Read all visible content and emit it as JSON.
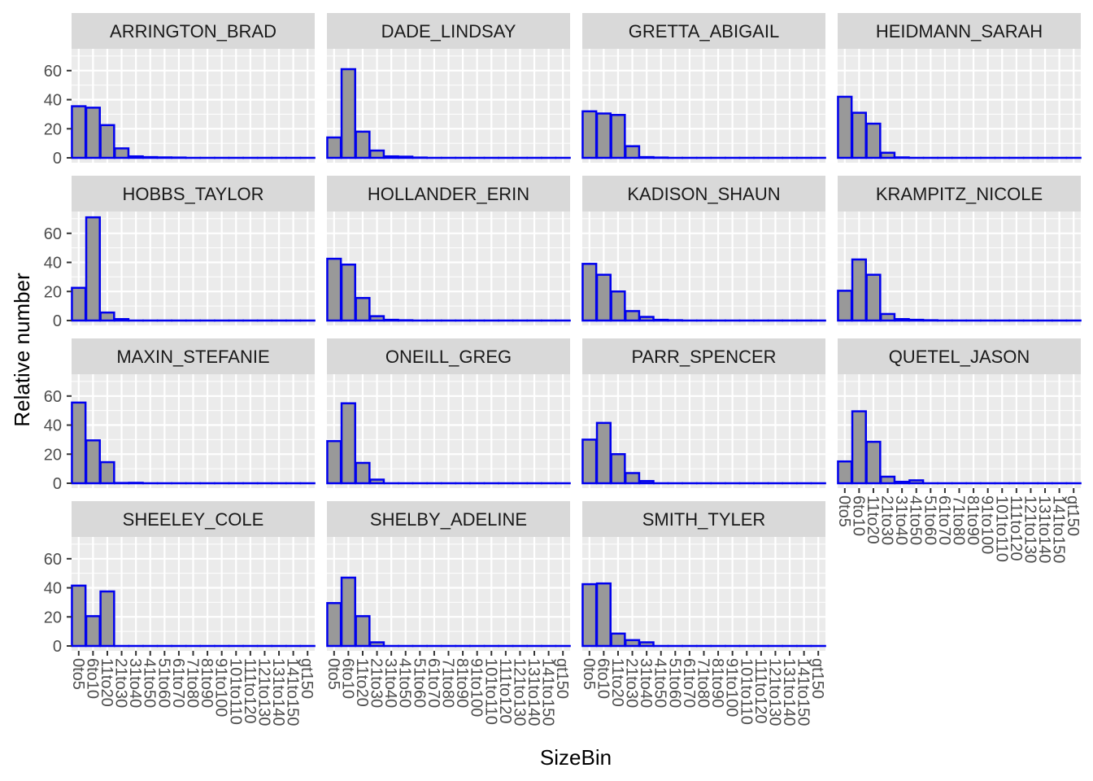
{
  "chart_data": {
    "type": "bar",
    "xlabel": "SizeBin",
    "ylabel": "Relative number",
    "ylim": [
      0,
      75
    ],
    "yticks": [
      0,
      20,
      40,
      60
    ],
    "grid": true,
    "categories": [
      "0to5",
      "6to10",
      "11to20",
      "21to30",
      "31to40",
      "41to50",
      "51to60",
      "61to70",
      "71to80",
      "81to90",
      "91to100",
      "101to110",
      "111to120",
      "121to130",
      "131to140",
      "141to150",
      "gt150"
    ],
    "colors": {
      "bar_fill": "#999999",
      "bar_outline": "#0000ee",
      "panel_bg": "#ebebeb",
      "strip_bg": "#d9d9d9",
      "grid": "#ffffff"
    },
    "panels": [
      {
        "name": "ARRINGTON_BRAD",
        "values": [
          35.5,
          34.5,
          22.5,
          6.5,
          1,
          0.5,
          0.3,
          0.2,
          0,
          0,
          0,
          0,
          0,
          0,
          0,
          0,
          0
        ]
      },
      {
        "name": "DADE_LINDSAY",
        "values": [
          14,
          61,
          18,
          5,
          1,
          0.8,
          0.2,
          0,
          0,
          0,
          0,
          0,
          0,
          0,
          0,
          0,
          0
        ]
      },
      {
        "name": "GRETTA_ABIGAIL",
        "values": [
          32,
          30.5,
          29.5,
          8,
          0.5,
          0.2,
          0,
          0,
          0,
          0,
          0,
          0,
          0,
          0,
          0,
          0,
          0
        ]
      },
      {
        "name": "HEIDMANN_SARAH",
        "values": [
          42,
          31,
          23.5,
          3.5,
          0.3,
          0,
          0,
          0,
          0,
          0,
          0,
          0,
          0,
          0,
          0,
          0,
          0
        ]
      },
      {
        "name": "HOBBS_TAYLOR",
        "values": [
          22.5,
          71,
          5.5,
          1,
          0,
          0,
          0,
          0,
          0,
          0,
          0,
          0,
          0,
          0,
          0,
          0,
          0
        ]
      },
      {
        "name": "HOLLANDER_ERIN",
        "values": [
          42.5,
          38.5,
          15.5,
          3,
          0.5,
          0.2,
          0,
          0,
          0,
          0,
          0,
          0,
          0,
          0,
          0,
          0,
          0
        ]
      },
      {
        "name": "KADISON_SHAUN",
        "values": [
          39,
          31.5,
          20,
          6.5,
          2.5,
          0.5,
          0.2,
          0,
          0,
          0,
          0,
          0,
          0,
          0,
          0,
          0,
          0
        ]
      },
      {
        "name": "KRAMPITZ_NICOLE",
        "values": [
          20.5,
          42,
          31.5,
          4.5,
          1,
          0.5,
          0.2,
          0,
          0,
          0,
          0,
          0,
          0,
          0,
          0,
          0,
          0
        ]
      },
      {
        "name": "MAXIN_STEFANIE",
        "values": [
          55.5,
          29.5,
          14.5,
          0.2,
          0.3,
          0,
          0,
          0,
          0,
          0,
          0,
          0,
          0,
          0,
          0,
          0,
          0
        ]
      },
      {
        "name": "ONEILL_GREG",
        "values": [
          29,
          55,
          14,
          2.5,
          0,
          0,
          0,
          0,
          0,
          0,
          0,
          0,
          0,
          0,
          0,
          0,
          0
        ]
      },
      {
        "name": "PARR_SPENCER",
        "values": [
          30,
          41.5,
          20,
          7,
          1.5,
          0,
          0,
          0,
          0,
          0,
          0,
          0,
          0,
          0,
          0,
          0,
          0
        ]
      },
      {
        "name": "QUETEL_JASON",
        "values": [
          15,
          49.5,
          28.5,
          4.5,
          1,
          2,
          0,
          0,
          0,
          0,
          0,
          0,
          0,
          0,
          0,
          0,
          0
        ]
      },
      {
        "name": "SHEELEY_COLE",
        "values": [
          41.5,
          20.5,
          37.5,
          0,
          0,
          0,
          0,
          0,
          0,
          0,
          0,
          0,
          0,
          0,
          0,
          0,
          0
        ]
      },
      {
        "name": "SHELBY_ADELINE",
        "values": [
          29.5,
          47,
          20.5,
          2.5,
          0,
          0,
          0,
          0,
          0,
          0,
          0,
          0,
          0,
          0,
          0,
          0,
          0
        ]
      },
      {
        "name": "SMITH_TYLER",
        "values": [
          42.5,
          43,
          8.5,
          4,
          2.5,
          0,
          0,
          0,
          0,
          0,
          0,
          0,
          0,
          0,
          0,
          0,
          0
        ]
      }
    ]
  }
}
